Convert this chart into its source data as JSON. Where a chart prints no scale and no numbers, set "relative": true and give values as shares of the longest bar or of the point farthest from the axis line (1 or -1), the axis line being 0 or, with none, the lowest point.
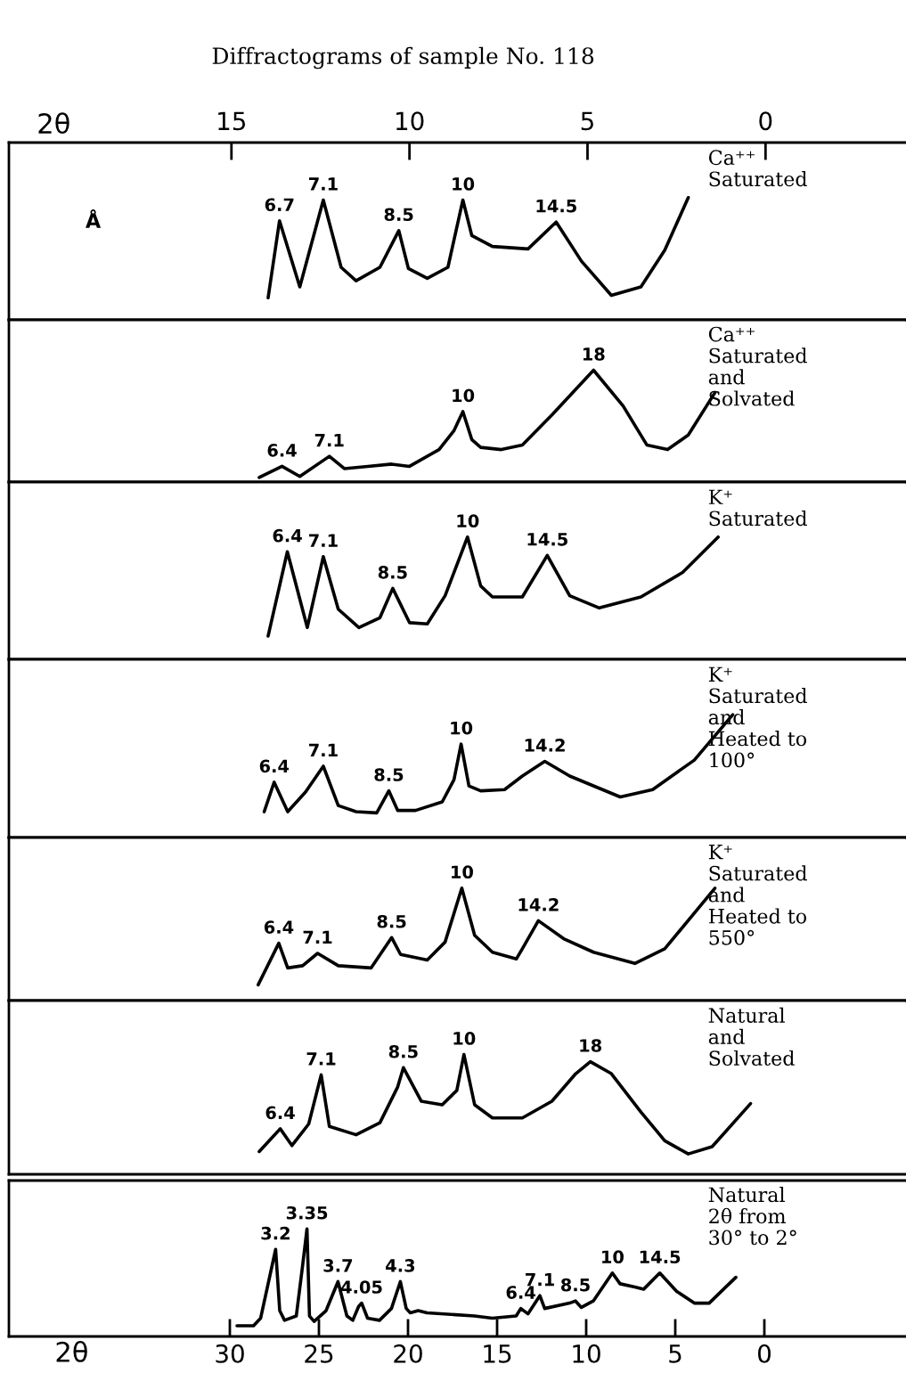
{
  "chart_data": [
    {
      "type": "line",
      "relative": true,
      "title": "Diffractograms of sample No. 118",
      "subtitle": "Ca⁺⁺\nSaturated",
      "xlabel": "2θ",
      "xlim": [
        21.25,
        -3.92
      ],
      "xticks": [
        15,
        10,
        5,
        0
      ],
      "tick_labels": "x",
      "color": "#000000",
      "x": [
        13.97,
        13.65,
        13.08,
        12.42,
        11.92,
        11.5,
        10.83,
        10.3,
        10.03,
        9.5,
        8.92,
        8.5,
        8.25,
        7.67,
        6.67,
        5.88,
        5.17,
        4.33,
        3.5,
        2.83,
        2.17
      ],
      "values": [
        0.18,
        0.81,
        0.27,
        0.98,
        0.43,
        0.32,
        0.43,
        0.73,
        0.42,
        0.34,
        0.43,
        0.98,
        0.69,
        0.6,
        0.58,
        0.8,
        0.48,
        0.2,
        0.27,
        0.57,
        1
      ],
      "annotations": [
        "Å",
        {
          "text": "6.7",
          "x": 13.65,
          "y": 0.81
        },
        {
          "text": "7.1",
          "x": 12.42,
          "y": 0.98
        },
        {
          "text": "8.5",
          "x": 10.3,
          "y": 0.73
        },
        {
          "text": "10",
          "x": 8.5,
          "y": 0.98
        },
        {
          "text": "14.5",
          "x": 5.88,
          "y": 0.8
        }
      ]
    },
    {
      "type": "line",
      "relative": true,
      "subtitle": "Ca⁺⁺\nSaturated\nand\nSolvated",
      "xlim": [
        21.25,
        -3.92
      ],
      "tick_labels": false,
      "color": "#000000",
      "x": [
        14.22,
        13.58,
        13.08,
        12.25,
        11.83,
        11.17,
        10.5,
        10,
        9.17,
        8.75,
        8.5,
        8.25,
        8,
        7.42,
        6.83,
        6,
        4.83,
        4,
        3.33,
        2.75,
        2.17,
        1.42
      ],
      "values": [
        0.04,
        0.14,
        0.05,
        0.23,
        0.12,
        0.14,
        0.16,
        0.14,
        0.29,
        0.46,
        0.63,
        0.38,
        0.31,
        0.29,
        0.33,
        0.6,
        1,
        0.68,
        0.33,
        0.29,
        0.42,
        0.8
      ],
      "annotations": [
        {
          "text": "6.4",
          "x": 13.58,
          "y": 0.14
        },
        {
          "text": "7.1",
          "x": 12.25,
          "y": 0.23
        },
        {
          "text": "10",
          "x": 8.5,
          "y": 0.63
        },
        {
          "text": "18",
          "x": 4.83,
          "y": 1
        }
      ]
    },
    {
      "type": "line",
      "relative": true,
      "subtitle": "K⁺\nSaturated",
      "xlim": [
        21.25,
        -3.92
      ],
      "tick_labels": false,
      "color": "#000000",
      "x": [
        13.97,
        13.43,
        12.87,
        12.42,
        12,
        11.42,
        10.83,
        10.47,
        10,
        9.5,
        9,
        8.37,
        8,
        7.67,
        6.83,
        6.13,
        5.5,
        4.67,
        3.5,
        2.33,
        1.33
      ],
      "values": [
        0.19,
        0.88,
        0.26,
        0.84,
        0.41,
        0.26,
        0.34,
        0.58,
        0.3,
        0.29,
        0.52,
        1,
        0.6,
        0.51,
        0.51,
        0.85,
        0.52,
        0.42,
        0.51,
        0.71,
        1
      ],
      "annotations": [
        {
          "text": "6.4",
          "x": 13.43,
          "y": 0.88
        },
        {
          "text": "7.1",
          "x": 12.42,
          "y": 0.84
        },
        {
          "text": "8.5",
          "x": 10.47,
          "y": 0.58
        },
        {
          "text": "10",
          "x": 8.37,
          "y": 1
        },
        {
          "text": "14.5",
          "x": 6.13,
          "y": 0.85
        }
      ]
    },
    {
      "type": "line",
      "relative": true,
      "subtitle": "K⁺\nSaturated\nand\nHeated to\n100°",
      "xlim": [
        21.25,
        -3.92
      ],
      "tick_labels": false,
      "color": "#000000",
      "x": [
        14.08,
        13.8,
        13.42,
        12.92,
        12.42,
        12,
        11.5,
        10.92,
        10.58,
        10.33,
        9.83,
        9.08,
        8.75,
        8.55,
        8.33,
        8,
        7.33,
        6.83,
        6.2,
        5.5,
        4.08,
        3.17,
        2,
        0.92
      ],
      "values": [
        0.21,
        0.45,
        0.21,
        0.37,
        0.58,
        0.26,
        0.21,
        0.2,
        0.38,
        0.22,
        0.22,
        0.29,
        0.47,
        0.76,
        0.42,
        0.38,
        0.39,
        0.5,
        0.62,
        0.5,
        0.33,
        0.39,
        0.63,
        1
      ],
      "annotations": [
        {
          "text": "6.4",
          "x": 13.8,
          "y": 0.45
        },
        {
          "text": "7.1",
          "x": 12.42,
          "y": 0.58
        },
        {
          "text": "8.5",
          "x": 10.58,
          "y": 0.38
        },
        {
          "text": "10",
          "x": 8.55,
          "y": 0.76
        },
        {
          "text": "14.2",
          "x": 6.2,
          "y": 0.62
        }
      ]
    },
    {
      "type": "line",
      "relative": true,
      "subtitle": "K⁺\nSaturated\nand\nHeated to\n550°",
      "xlim": [
        21.25,
        -3.92
      ],
      "tick_labels": false,
      "color": "#000000",
      "x": [
        14.25,
        13.67,
        13.42,
        13,
        12.58,
        12,
        11.08,
        10.5,
        10.25,
        9.5,
        9,
        8.53,
        8.17,
        7.67,
        7,
        6.83,
        6.38,
        5.67,
        4.83,
        3.67,
        2.83,
        1.42
      ],
      "values": [
        0.14,
        0.51,
        0.29,
        0.31,
        0.42,
        0.31,
        0.29,
        0.56,
        0.41,
        0.36,
        0.52,
        1,
        0.58,
        0.43,
        0.37,
        0.46,
        0.71,
        0.55,
        0.43,
        0.33,
        0.46,
        1
      ],
      "annotations": [
        {
          "text": "6.4",
          "x": 13.67,
          "y": 0.51
        },
        {
          "text": "7.1",
          "x": 12.58,
          "y": 0.42
        },
        {
          "text": "8.5",
          "x": 10.5,
          "y": 0.56
        },
        {
          "text": "10",
          "x": 8.53,
          "y": 1
        },
        {
          "text": "14.2",
          "x": 6.38,
          "y": 0.71
        }
      ]
    },
    {
      "type": "line",
      "relative": true,
      "subtitle": "Natural\nand\nSolvated",
      "xlim": [
        21.25,
        -3.92
      ],
      "tick_labels": false,
      "color": "#000000",
      "x": [
        14.22,
        13.63,
        13.3,
        12.83,
        12.48,
        12.25,
        11.5,
        10.83,
        10.33,
        10.17,
        9.67,
        9.08,
        8.67,
        8.47,
        8.17,
        7.67,
        6.83,
        6,
        5.33,
        4.92,
        4.33,
        3.5,
        2.83,
        2.17,
        1.5,
        0.42
      ],
      "values": [
        0.19,
        0.38,
        0.24,
        0.42,
        0.83,
        0.4,
        0.33,
        0.43,
        0.73,
        0.89,
        0.61,
        0.58,
        0.7,
        1,
        0.58,
        0.47,
        0.47,
        0.61,
        0.84,
        0.94,
        0.84,
        0.52,
        0.28,
        0.17,
        0.23,
        0.59
      ],
      "annotations": [
        {
          "text": "6.4",
          "x": 13.63,
          "y": 0.38
        },
        {
          "text": "7.1",
          "x": 12.48,
          "y": 0.83
        },
        {
          "text": "8.5",
          "x": 10.17,
          "y": 0.89
        },
        {
          "text": "10",
          "x": 8.47,
          "y": 1
        },
        {
          "text": "18",
          "x": 4.92,
          "y": 0.94
        }
      ]
    },
    {
      "type": "line",
      "relative": true,
      "subtitle": "Natural\n2θ from\n30° to 2°",
      "xlabel": "2θ",
      "xlim": [
        42.4,
        -7.9
      ],
      "xticks": [
        30,
        25,
        20,
        15,
        10,
        5,
        0
      ],
      "tick_labels": "x",
      "color": "#000000",
      "x": [
        29.6,
        28.67,
        28.27,
        27.43,
        27.2,
        26.93,
        26.27,
        25.93,
        25.67,
        25.53,
        25.27,
        24.6,
        23.93,
        23.43,
        23.1,
        22.77,
        22.6,
        22.27,
        21.6,
        20.93,
        20.43,
        20.1,
        19.87,
        19.43,
        18.93,
        16.27,
        15.27,
        13.93,
        13.67,
        13.27,
        12.6,
        12.33,
        10.93,
        10.6,
        10.27,
        9.6,
        8.53,
        8.1,
        7.27,
        6.77,
        5.87,
        4.93,
        3.93,
        3.1,
        1.6
      ],
      "values": [
        0.1,
        0.1,
        0.17,
        0.81,
        0.24,
        0.15,
        0.19,
        0.64,
        1,
        0.19,
        0.14,
        0.24,
        0.51,
        0.19,
        0.15,
        0.28,
        0.31,
        0.17,
        0.15,
        0.26,
        0.51,
        0.26,
        0.22,
        0.24,
        0.22,
        0.19,
        0.17,
        0.19,
        0.26,
        0.21,
        0.38,
        0.26,
        0.31,
        0.33,
        0.27,
        0.33,
        0.59,
        0.49,
        0.46,
        0.44,
        0.59,
        0.42,
        0.31,
        0.31,
        0.55
      ],
      "annotations": [
        {
          "text": "3.2",
          "x": 27.43,
          "y": 0.81
        },
        {
          "text": "3.35",
          "x": 25.67,
          "y": 1
        },
        {
          "text": "3.7",
          "x": 23.93,
          "y": 0.51
        },
        {
          "text": "4.05",
          "x": 22.6,
          "y": 0.31
        },
        {
          "text": "4.3",
          "x": 20.43,
          "y": 0.51
        },
        {
          "text": "6.4",
          "x": 13.67,
          "y": 0.26
        },
        {
          "text": "7.1",
          "x": 12.6,
          "y": 0.38
        },
        {
          "text": "8.5",
          "x": 10.6,
          "y": 0.33
        },
        {
          "text": "10",
          "x": 8.53,
          "y": 0.59
        },
        {
          "text": "14.5",
          "x": 5.87,
          "y": 0.59
        }
      ]
    }
  ]
}
